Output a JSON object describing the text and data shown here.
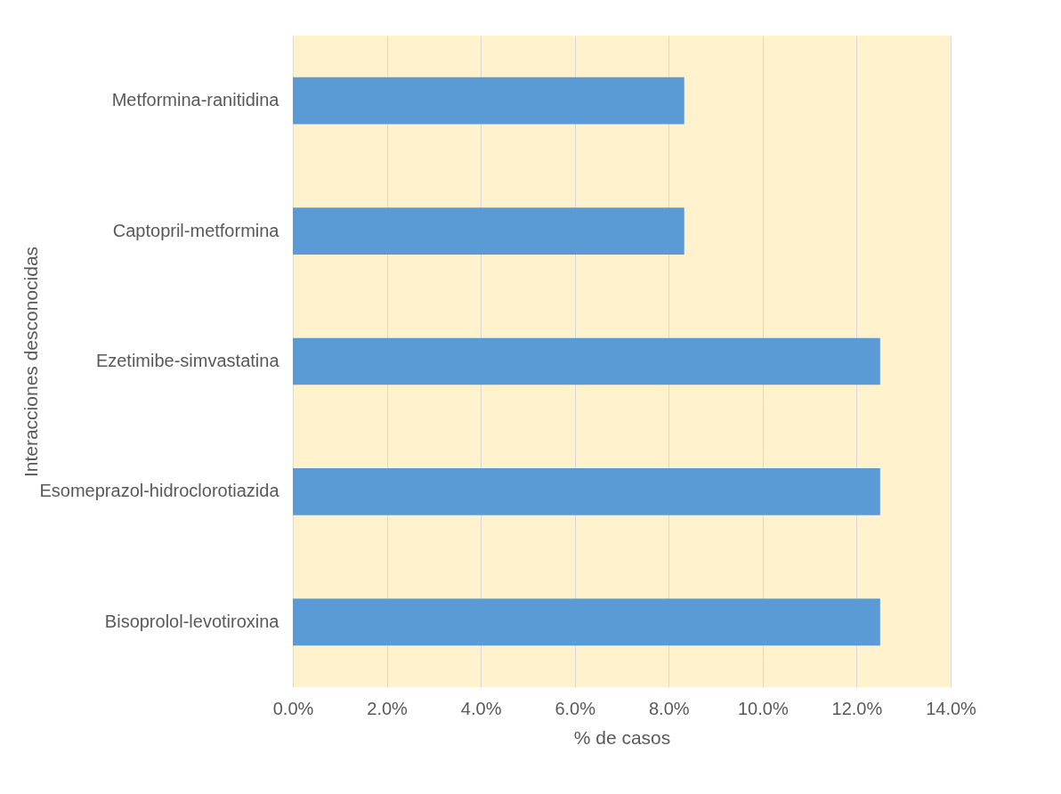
{
  "chart_data": {
    "type": "bar",
    "orientation": "horizontal",
    "xlabel": "% de casos",
    "ylabel": "Interacciones desconocidas",
    "categories": [
      "Metformina-ranitidina",
      "Captopril-metformina",
      "Ezetimibe-simvastatina",
      "Esomeprazol-hidroclorotiazida",
      "Bisoprolol-levotiroxina"
    ],
    "values": [
      8.33,
      8.33,
      12.5,
      12.5,
      12.5
    ],
    "color": "#5b9bd5",
    "xlim": [
      0,
      14
    ],
    "xticks": [
      {
        "value": 0,
        "label": "0.0%"
      },
      {
        "value": 2,
        "label": "2.0%"
      },
      {
        "value": 4,
        "label": "4.0%"
      },
      {
        "value": 6,
        "label": "6.0%"
      },
      {
        "value": 8,
        "label": "8.0%"
      },
      {
        "value": 10,
        "label": "10.0%"
      },
      {
        "value": 12,
        "label": "12.0%"
      },
      {
        "value": 14,
        "label": "14.0%"
      }
    ],
    "grid": "x"
  }
}
